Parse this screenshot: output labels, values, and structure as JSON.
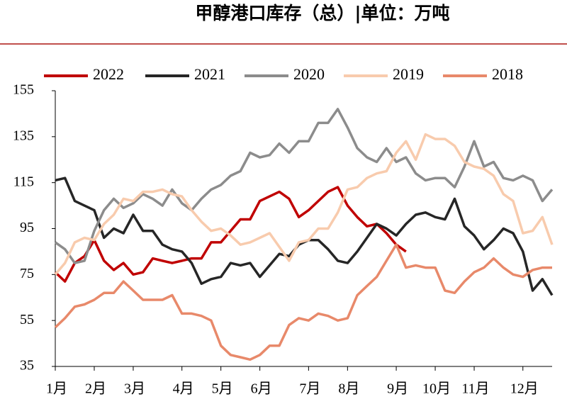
{
  "chart_data": {
    "type": "line",
    "title": "甲醇港口库存（总）|单位：万吨",
    "x": [
      1,
      2,
      3,
      4,
      5,
      6,
      7,
      8,
      9,
      10,
      11,
      12,
      13,
      14,
      15,
      16,
      17,
      18,
      19,
      20,
      21,
      22,
      23,
      24,
      25,
      26,
      27,
      28,
      29,
      30,
      31,
      32,
      33,
      34,
      35,
      36,
      37,
      38,
      39,
      40,
      41,
      42,
      43,
      44,
      45,
      46,
      47,
      48,
      49,
      50,
      51,
      52
    ],
    "xlim": [
      1,
      52
    ],
    "xticks": [
      {
        "value": 1,
        "label": "1月"
      },
      {
        "value": 5,
        "label": "2月"
      },
      {
        "value": 9,
        "label": "3月"
      },
      {
        "value": 14,
        "label": "4月"
      },
      {
        "value": 18,
        "label": "5月"
      },
      {
        "value": 22,
        "label": "6月"
      },
      {
        "value": 27,
        "label": "7月"
      },
      {
        "value": 31,
        "label": "8月"
      },
      {
        "value": 36,
        "label": "9月"
      },
      {
        "value": 40,
        "label": "10月"
      },
      {
        "value": 44,
        "label": "11月"
      },
      {
        "value": 49,
        "label": "12月"
      }
    ],
    "ylim": [
      35,
      155
    ],
    "yticks": [
      35,
      55,
      75,
      95,
      115,
      135,
      155
    ],
    "series": [
      {
        "name": "2022",
        "color": "#c00000",
        "values": [
          76,
          72,
          80,
          83,
          90,
          81,
          77,
          80,
          75,
          76,
          82,
          81,
          80,
          81,
          82,
          82,
          89,
          89,
          94,
          99,
          99,
          107,
          109,
          111,
          108,
          100,
          103,
          107,
          111,
          113,
          105,
          100,
          96,
          97,
          93,
          88,
          85,
          null,
          null,
          null,
          null,
          null,
          null,
          null,
          null,
          null,
          null,
          null,
          null,
          null,
          null,
          null
        ]
      },
      {
        "name": "2021",
        "color": "#262626",
        "values": [
          116,
          117,
          107,
          105,
          103,
          91,
          95,
          93,
          101,
          94,
          94,
          88,
          86,
          85,
          80,
          71,
          73,
          74,
          80,
          79,
          80,
          74,
          79,
          84,
          83,
          88,
          90,
          90,
          86,
          81,
          80,
          85,
          91,
          97,
          95,
          92,
          97,
          101,
          102,
          100,
          99,
          108,
          96,
          92,
          86,
          90,
          95,
          93,
          85,
          68,
          73,
          66
        ]
      },
      {
        "name": "2020",
        "color": "#8c8c8c",
        "values": [
          89,
          86,
          80,
          81,
          94,
          103,
          108,
          104,
          106,
          110,
          108,
          105,
          112,
          106,
          103,
          108,
          112,
          114,
          118,
          120,
          128,
          126,
          127,
          132,
          128,
          133,
          133,
          141,
          141,
          147,
          139,
          130,
          126,
          124,
          130,
          124,
          126,
          119,
          116,
          117,
          117,
          113,
          122,
          133,
          122,
          124,
          117,
          116,
          118,
          116,
          107,
          112
        ]
      },
      {
        "name": "2019",
        "color": "#f8cbad",
        "values": [
          75,
          80,
          89,
          91,
          90,
          97,
          101,
          108,
          107,
          111,
          111,
          112,
          110,
          109,
          103,
          98,
          94,
          95,
          92,
          88,
          89,
          91,
          93,
          87,
          81,
          89,
          90,
          95,
          95,
          102,
          112,
          113,
          117,
          119,
          120,
          128,
          133,
          125,
          136,
          134,
          134,
          131,
          124,
          122,
          121,
          118,
          110,
          107,
          93,
          94,
          100,
          88
        ]
      },
      {
        "name": "2018",
        "color": "#e8896a",
        "values": [
          52,
          56,
          61,
          62,
          64,
          67,
          67,
          72,
          68,
          64,
          64,
          64,
          66,
          58,
          58,
          57,
          55,
          44,
          40,
          39,
          38,
          40,
          44,
          44,
          53,
          56,
          55,
          58,
          57,
          55,
          56,
          66,
          70,
          74,
          81,
          88,
          78,
          79,
          78,
          78,
          68,
          67,
          72,
          76,
          78,
          82,
          78,
          75,
          74,
          77,
          78,
          78
        ]
      }
    ]
  }
}
